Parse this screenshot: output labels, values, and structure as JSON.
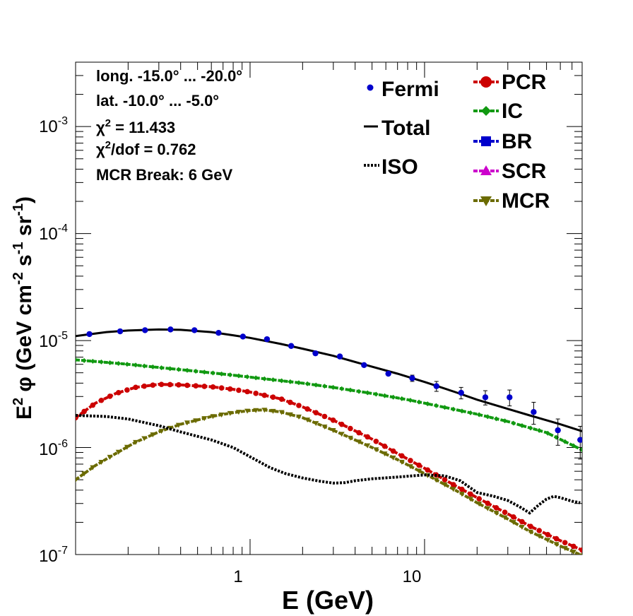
{
  "chart_data": {
    "type": "line",
    "xlabel": "E (GeV)",
    "ylabel_parts": {
      "pre": "E",
      "sup1": "2",
      "phi": " φ (GeV cm",
      "sup2": "-2",
      "mid": " s",
      "sup3": "-1",
      "sr": " sr",
      "sup4": "-1",
      "post": ")"
    },
    "x_scale": "log",
    "y_scale": "log",
    "xlim": [
      0.1,
      80
    ],
    "ylim": [
      1e-07,
      0.004
    ],
    "x_ticklabels": [
      {
        "value": 1,
        "label": "1"
      },
      {
        "value": 10,
        "label": "10"
      }
    ],
    "y_ticklabels": [
      {
        "value": 1e-07,
        "base": "10",
        "exp": "-7"
      },
      {
        "value": 1e-06,
        "base": "10",
        "exp": "-6"
      },
      {
        "value": 1e-05,
        "base": "10",
        "exp": "-5"
      },
      {
        "value": 0.0001,
        "base": "10",
        "exp": "-4"
      },
      {
        "value": 0.001,
        "base": "10",
        "exp": "-3"
      }
    ],
    "info_text": {
      "longitude": "long. -15.0° ... -20.0°",
      "latitude": "lat. -10.0° ... -5.0°",
      "chi2_sym": "χ",
      "chi2_sup": "2",
      "chi2_val": " = 11.433",
      "chi2dof_sym": "χ",
      "chi2dof_sup": "2",
      "chi2dof_val": "/dof = 0.762",
      "break": "MCR Break:  6 GeV"
    },
    "legend_left": [
      {
        "name": "Fermi",
        "style": "point",
        "color": "#0000cc"
      },
      {
        "name": "Total",
        "style": "line",
        "color": "#000000"
      },
      {
        "name": "ISO",
        "style": "dotted",
        "color": "#000000"
      }
    ],
    "legend_right": [
      {
        "name": "PCR",
        "marker": "circle",
        "color": "#cc0000"
      },
      {
        "name": "IC",
        "marker": "diamond",
        "color": "#119911"
      },
      {
        "name": "BR",
        "marker": "square",
        "color": "#0000cc"
      },
      {
        "name": "SCR",
        "marker": "triangle-up",
        "color": "#cc00cc"
      },
      {
        "name": "MCR",
        "marker": "triangle-down",
        "color": "#6b6b00"
      }
    ],
    "series": [
      {
        "name": "Fermi",
        "style": "points",
        "color": "#0000cc",
        "x": [
          0.12,
          0.18,
          0.25,
          0.35,
          0.48,
          0.66,
          0.91,
          1.25,
          1.72,
          2.37,
          3.27,
          4.5,
          6.2,
          8.5,
          11.7,
          16.2,
          22.3,
          30.7,
          42.2,
          58.1,
          78.0
        ],
        "y": [
          1.15e-05,
          1.22e-05,
          1.25e-05,
          1.27e-05,
          1.25e-05,
          1.18e-05,
          1.09e-05,
          1.03e-05,
          8.9e-06,
          7.6e-06,
          7.1e-06,
          5.9e-06,
          4.9e-06,
          4.45e-06,
          3.75e-06,
          3.25e-06,
          2.95e-06,
          2.95e-06,
          2.15e-06,
          1.45e-06,
          1.18e-06
        ],
        "yerr_lo": [
          0,
          0,
          0,
          0,
          0,
          0,
          0,
          0,
          0,
          0,
          0,
          0,
          0,
          3e-07,
          4e-07,
          4e-07,
          4.5e-07,
          5e-07,
          5e-07,
          4e-07,
          4e-07
        ],
        "yerr_hi": [
          0,
          0,
          0,
          0,
          0,
          0,
          0,
          0,
          0,
          0,
          0,
          0,
          0,
          3e-07,
          4e-07,
          4e-07,
          4.5e-07,
          5e-07,
          5e-07,
          4e-07,
          4e-07
        ]
      },
      {
        "name": "Total",
        "style": "line",
        "color": "#000000",
        "x": [
          0.1,
          0.15,
          0.2,
          0.3,
          0.4,
          0.6,
          0.8,
          1.0,
          1.5,
          2.0,
          3.0,
          5.0,
          7.0,
          10,
          15,
          20,
          30,
          40,
          60,
          80
        ],
        "y": [
          1.1e-05,
          1.2e-05,
          1.24e-05,
          1.27e-05,
          1.26e-05,
          1.2e-05,
          1.12e-05,
          1.06e-05,
          9.3e-06,
          8.4e-06,
          7.2e-06,
          5.7e-06,
          4.9e-06,
          4.1e-06,
          3.3e-06,
          2.8e-06,
          2.3e-06,
          2e-06,
          1.65e-06,
          1.42e-06
        ]
      },
      {
        "name": "ISO",
        "style": "dotted",
        "color": "#000000",
        "x": [
          0.1,
          0.15,
          0.2,
          0.3,
          0.4,
          0.6,
          0.8,
          1.0,
          1.3,
          1.6,
          2.0,
          2.5,
          3.0,
          3.5,
          4.0,
          5.0,
          7.0,
          10,
          13,
          16,
          20,
          25,
          30,
          35,
          40,
          45,
          50,
          55,
          60,
          70,
          78
        ],
        "y": [
          2e-06,
          1.95e-06,
          1.85e-06,
          1.6e-06,
          1.4e-06,
          1.18e-06,
          1e-06,
          8.2e-07,
          6.5e-07,
          5.7e-07,
          5.2e-07,
          4.85e-07,
          4.65e-07,
          4.7e-07,
          4.9e-07,
          5.1e-07,
          5.3e-07,
          5.55e-07,
          5.45e-07,
          4.9e-07,
          3.8e-07,
          3.5e-07,
          3.2e-07,
          2.8e-07,
          2.45e-07,
          2.9e-07,
          3.3e-07,
          3.5e-07,
          3.4e-07,
          3.15e-07,
          3.05e-07
        ]
      },
      {
        "name": "IC",
        "style": "dashed-marker",
        "marker": "diamond",
        "color": "#119911",
        "x": [
          0.1,
          0.15,
          0.2,
          0.3,
          0.5,
          0.8,
          1.0,
          2.0,
          3.0,
          5.0,
          8.0,
          10,
          20,
          30,
          50,
          80
        ],
        "y": [
          6.6e-06,
          6.25e-06,
          6e-06,
          5.6e-06,
          5.15e-06,
          4.75e-06,
          4.55e-06,
          4e-06,
          3.65e-06,
          3.2e-06,
          2.8e-06,
          2.6e-06,
          2.05e-06,
          1.75e-06,
          1.38e-06,
          9.5e-07
        ]
      },
      {
        "name": "PCR",
        "style": "dashed-marker",
        "marker": "circle",
        "color": "#cc0000",
        "x": [
          0.1,
          0.13,
          0.17,
          0.22,
          0.3,
          0.4,
          0.6,
          0.8,
          1.0,
          1.5,
          2.0,
          3.0,
          5.0,
          7.0,
          10,
          15,
          20,
          30,
          40,
          60,
          80
        ],
        "y": [
          1.9e-06,
          2.6e-06,
          3.2e-06,
          3.65e-06,
          3.9e-06,
          3.85e-06,
          3.7e-06,
          3.5e-06,
          3.3e-06,
          2.85e-06,
          2.4e-06,
          1.8e-06,
          1.2e-06,
          8.8e-07,
          6.4e-07,
          4.4e-07,
          3.4e-07,
          2.4e-07,
          1.85e-07,
          1.35e-07,
          1.1e-07
        ]
      },
      {
        "name": "MCR",
        "style": "dashed-marker",
        "marker": "triangle-down",
        "color": "#6b6b00",
        "x": [
          0.1,
          0.13,
          0.17,
          0.22,
          0.3,
          0.4,
          0.6,
          0.8,
          1.0,
          1.2,
          1.5,
          2.0,
          3.0,
          5.0,
          7.0,
          10,
          15,
          20,
          30,
          40,
          60,
          80
        ],
        "y": [
          5e-07,
          6.8e-07,
          8.8e-07,
          1.12e-06,
          1.4e-06,
          1.65e-06,
          1.95e-06,
          2.12e-06,
          2.22e-06,
          2.25e-06,
          2.15e-06,
          1.9e-06,
          1.45e-06,
          1e-06,
          7.7e-07,
          5.7e-07,
          4e-07,
          3.05e-07,
          2.15e-07,
          1.65e-07,
          1.2e-07,
          9.8e-08
        ]
      }
    ]
  }
}
